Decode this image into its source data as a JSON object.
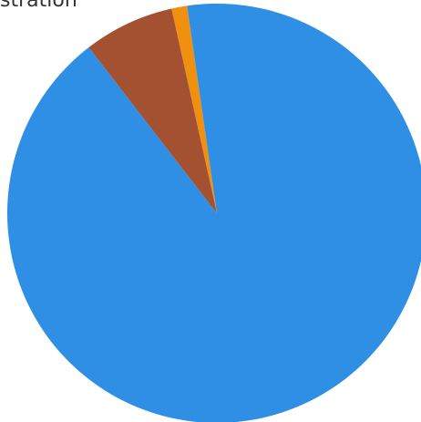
{
  "chart_data": {
    "type": "pie",
    "title": "stration",
    "slices": [
      {
        "value": 1.2,
        "color": "#f0900f"
      },
      {
        "value": 91.8,
        "color": "#2e8fe4"
      },
      {
        "value": 7.0,
        "color": "#a45131"
      }
    ]
  }
}
